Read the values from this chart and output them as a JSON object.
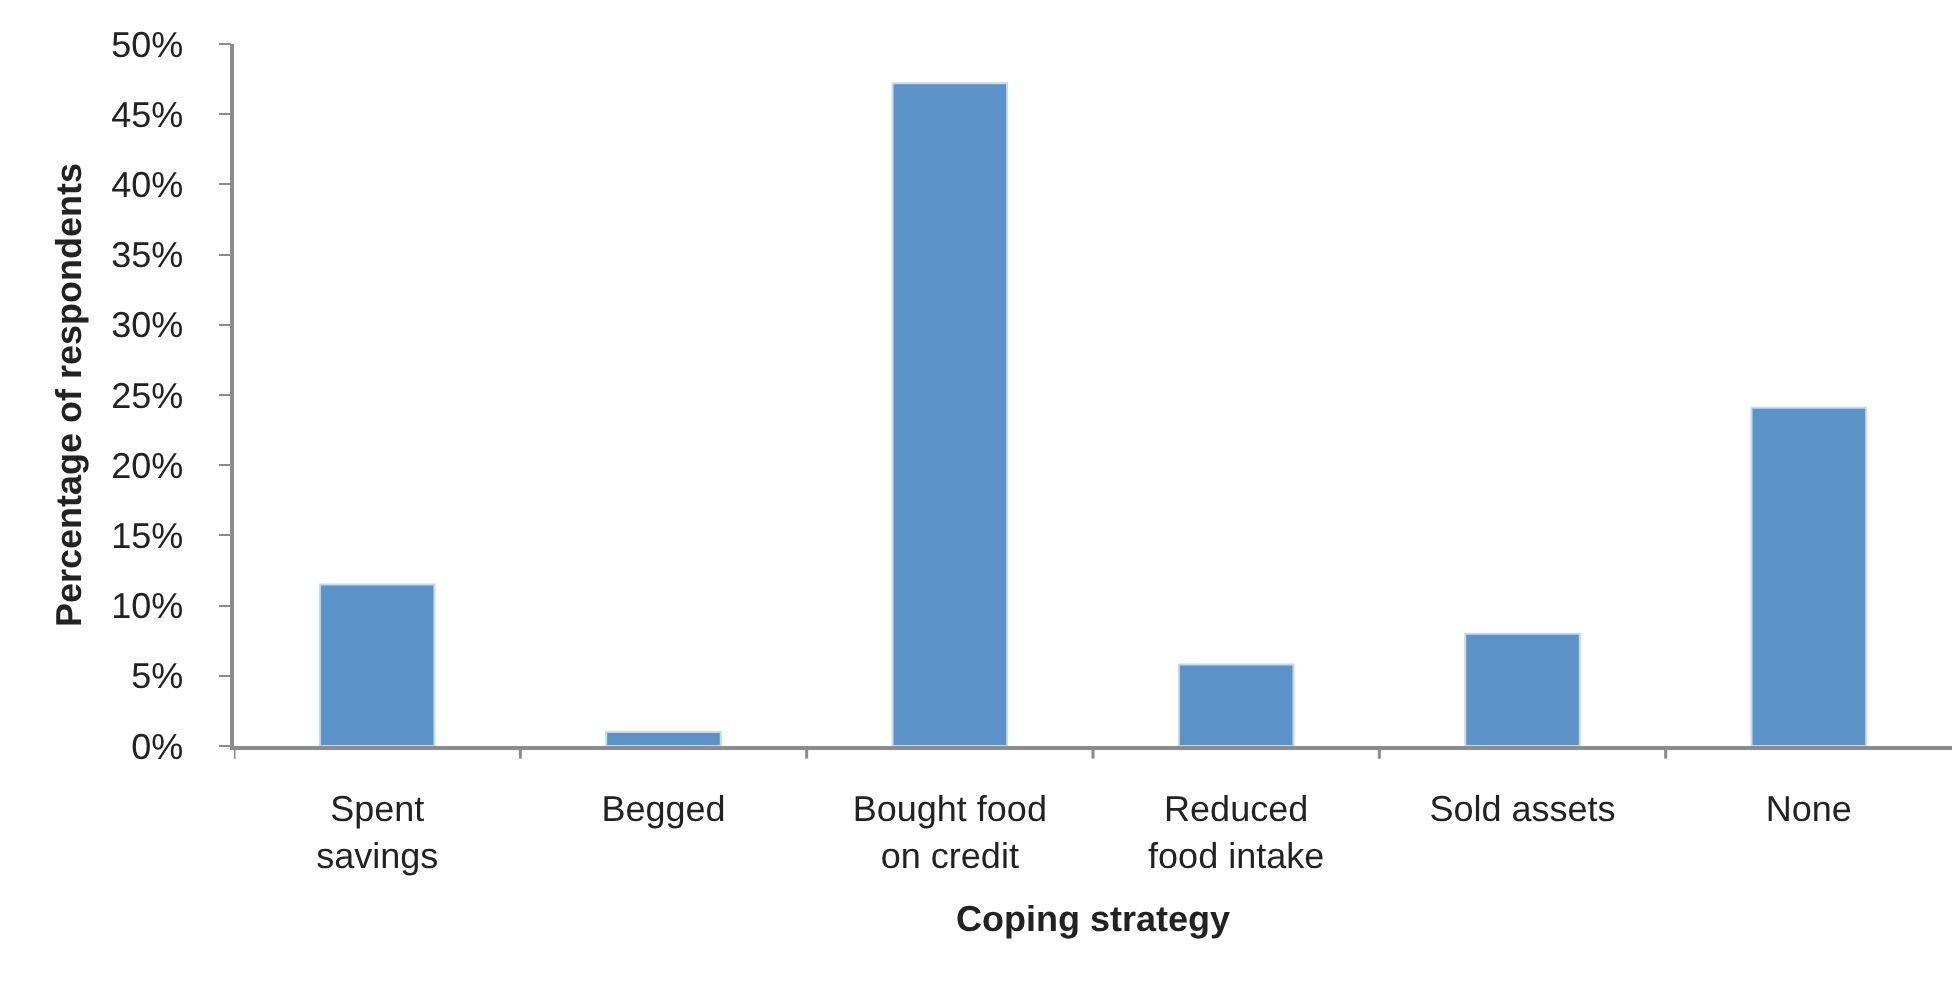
{
  "chart_data": {
    "type": "bar",
    "xlabel": "Coping strategy",
    "ylabel": "Percentage of respondents",
    "categories": [
      "Spent savings",
      "Begged",
      "Bought food on credit",
      "Reduced food intake",
      "Sold assets",
      "None"
    ],
    "values": [
      11.5,
      1.0,
      47.2,
      5.8,
      8.0,
      24.1
    ],
    "color": "#5b92c7",
    "ylim": [
      0,
      50
    ],
    "yticks": [
      {
        "value": 0,
        "label": "0%"
      },
      {
        "value": 5,
        "label": "5%"
      },
      {
        "value": 10,
        "label": "10%"
      },
      {
        "value": 15,
        "label": "15%"
      },
      {
        "value": 20,
        "label": "20%"
      },
      {
        "value": 25,
        "label": "25%"
      },
      {
        "value": 30,
        "label": "30%"
      },
      {
        "value": 35,
        "label": "35%"
      },
      {
        "value": 40,
        "label": "40%"
      },
      {
        "value": 45,
        "label": "45%"
      },
      {
        "value": 50,
        "label": "50%"
      }
    ]
  }
}
